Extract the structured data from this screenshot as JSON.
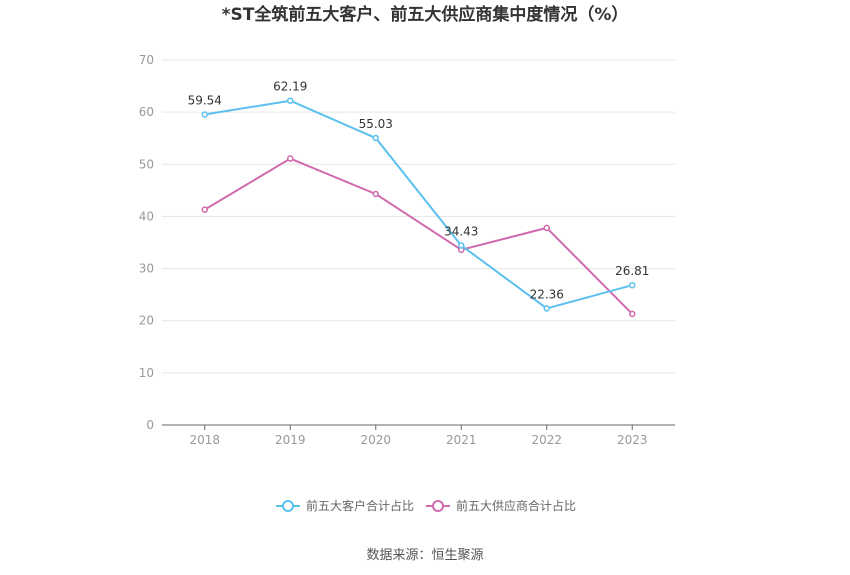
{
  "chart_data": {
    "type": "line",
    "title": "*ST全筑前五大客户、前五大供应商集中度情况（%）",
    "x": [
      "2018",
      "2019",
      "2020",
      "2021",
      "2022",
      "2023"
    ],
    "ylim": [
      0,
      70
    ],
    "yticks": [
      "0",
      "10",
      "20",
      "30",
      "40",
      "50",
      "60",
      "70"
    ],
    "grid": true,
    "legend_position": "bottom",
    "series": [
      {
        "name": "前五大客户合计占比",
        "color": "#5bc0f0",
        "values": [
          59.54,
          62.19,
          55.03,
          34.43,
          22.36,
          26.81
        ],
        "labels": [
          "59.54",
          "62.19",
          "55.03",
          "34.43",
          "22.36",
          "26.81"
        ]
      },
      {
        "name": "前五大供应商合计占比",
        "color": "#d06aae",
        "values": [
          41.3,
          51.1,
          44.3,
          33.6,
          37.8,
          21.3
        ]
      }
    ],
    "source": "数据来源：恒生聚源"
  }
}
